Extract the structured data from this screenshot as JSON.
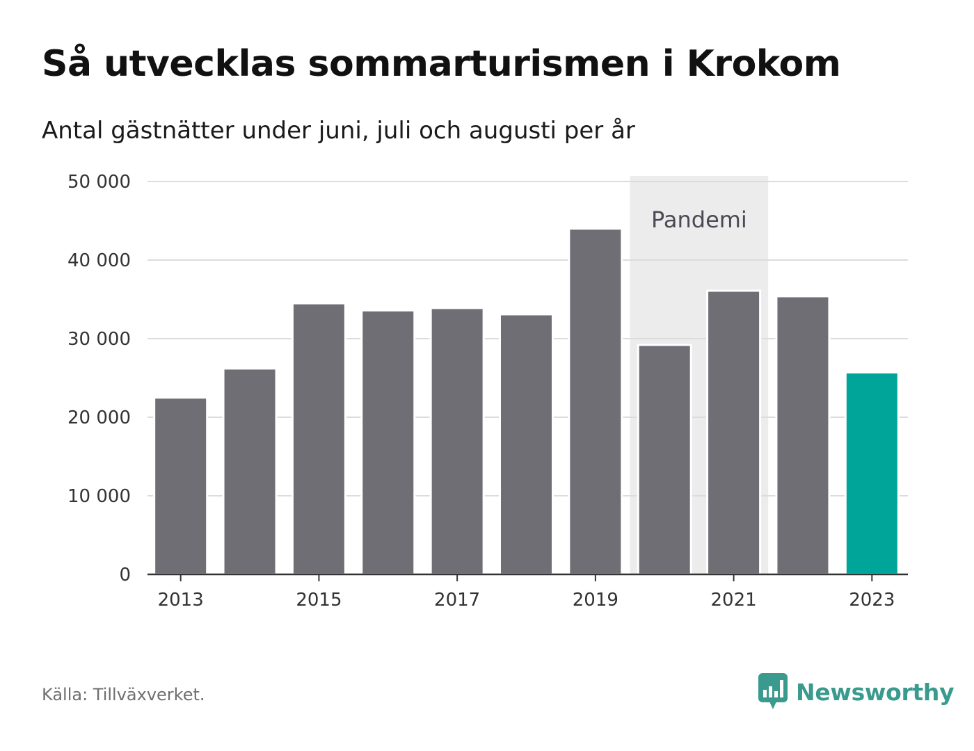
{
  "title": "Så utvecklas sommarturismen i Krokom",
  "subtitle": "Antal gästnätter under juni, juli och augusti per år",
  "source": "Källa: Tillväxverket.",
  "brand": {
    "name": "Newsworthy",
    "icon": "newsworthy-logo-icon",
    "color": "#3a9a8e"
  },
  "colors": {
    "bar": "#6f6e75",
    "highlight": "#00a59a",
    "band": "#ececec",
    "grid": "#dcdcdc",
    "axis": "#333333"
  },
  "chart_data": {
    "type": "bar",
    "categories": [
      "2013",
      "2014",
      "2015",
      "2016",
      "2017",
      "2018",
      "2019",
      "2020",
      "2021",
      "2022",
      "2023"
    ],
    "values": [
      22500,
      26200,
      34500,
      33600,
      33900,
      33100,
      44000,
      29200,
      36100,
      35400,
      25700
    ],
    "highlight_category": "2023",
    "xticks": [
      "2013",
      "2015",
      "2017",
      "2019",
      "2021",
      "2023"
    ],
    "yticks": [
      0,
      10000,
      20000,
      30000,
      40000,
      50000
    ],
    "ytick_labels": [
      "0",
      "10 000",
      "20 000",
      "30 000",
      "40 000",
      "50 000"
    ],
    "ylim": [
      0,
      50000
    ],
    "grid": true,
    "band": {
      "label": "Pandemi",
      "from": "2020",
      "to": "2021"
    }
  }
}
